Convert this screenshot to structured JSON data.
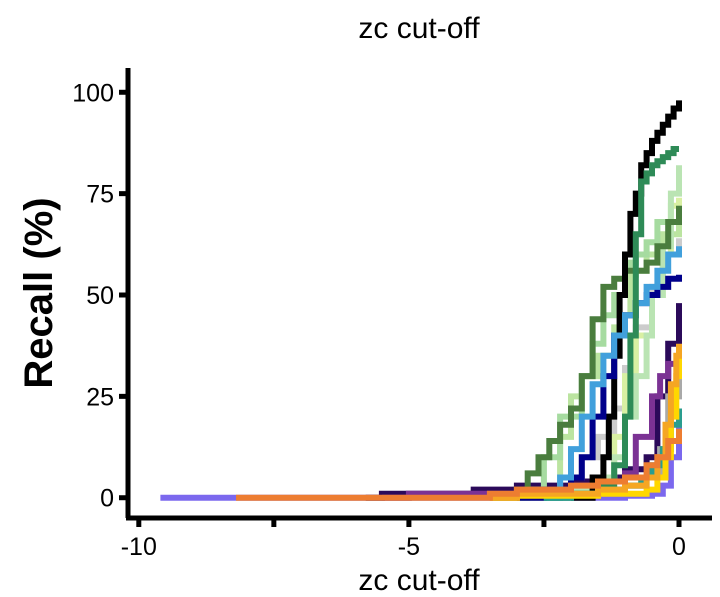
{
  "chart_data": {
    "type": "line",
    "title": "zc cut-off",
    "xlabel": "zc cut-off",
    "ylabel": "Recall (%)",
    "xlim": [
      -10.2,
      0.5
    ],
    "ylim": [
      -5,
      105
    ],
    "xticks": [
      -10,
      -5,
      0
    ],
    "xtick_labels": [
      "-10",
      "-5",
      "0"
    ],
    "yticks": [
      0,
      25,
      50,
      75,
      100
    ],
    "ytick_labels": [
      "0",
      "25",
      "50",
      "75",
      "100"
    ],
    "grid": false,
    "legend": "none",
    "series": [
      {
        "color": "#7b68ee",
        "x": [
          -9.6,
          -5.5,
          -3.5,
          -2.0,
          -1.0,
          -0.5,
          -0.3,
          -0.15,
          0
        ],
        "y": [
          0,
          0,
          0,
          0,
          0.5,
          1,
          3,
          10,
          18
        ]
      },
      {
        "color": "#2b0a5a",
        "x": [
          -5.8,
          -5.5,
          -4.5,
          -3.8,
          -3.0,
          -2.0,
          -1.5,
          -1.0,
          -0.6,
          -0.4,
          -0.2,
          0
        ],
        "y": [
          0,
          1,
          1,
          2,
          3,
          4,
          5,
          7,
          10,
          25,
          38,
          48
        ]
      },
      {
        "color": "#7b3294",
        "x": [
          -5.5,
          -5.0,
          -4.0,
          -3.0,
          -2.0,
          -1.5,
          -1.0,
          -0.8,
          -0.5,
          -0.35,
          -0.2,
          0
        ],
        "y": [
          0,
          1,
          1,
          2,
          3,
          4,
          6,
          15,
          25,
          30,
          33,
          35
        ]
      },
      {
        "color": "#a9a9a9",
        "x": [
          -3.5,
          -3.0,
          -2.0,
          -1.5,
          -1.0,
          -0.6,
          -0.35,
          -0.2,
          0
        ],
        "y": [
          0,
          1,
          2,
          2,
          3,
          5,
          12,
          25,
          30
        ]
      },
      {
        "color": "#cccccc",
        "x": [
          -3.0,
          -2.5,
          -2.0,
          -1.8,
          -1.5,
          -1.2,
          -1.0,
          -0.8,
          -0.5,
          -0.3,
          0
        ],
        "y": [
          0,
          2,
          5,
          10,
          15,
          22,
          32,
          42,
          52,
          60,
          64
        ]
      },
      {
        "color": "#d9f0a3",
        "x": [
          -3.5,
          -2.5,
          -2.0,
          -1.5,
          -1.2,
          -1.0,
          -0.8,
          -0.5,
          -0.3,
          -0.15,
          0
        ],
        "y": [
          0,
          1,
          2,
          5,
          15,
          30,
          40,
          50,
          60,
          72,
          74
        ]
      },
      {
        "color": "#bbe4a0",
        "x": [
          -2.5,
          -2.2,
          -2.0,
          -1.8,
          -1.5,
          -1.2,
          -1.0,
          -0.9,
          -0.8,
          -0.6,
          -0.3,
          0
        ],
        "y": [
          0,
          15,
          25,
          30,
          35,
          42,
          45,
          55,
          56,
          60,
          65,
          70
        ]
      },
      {
        "color": "#a6dba0",
        "x": [
          -3.0,
          -2.8,
          -2.5,
          -2.2,
          -1.8,
          -1.6,
          -1.4,
          -1.2,
          -1.0,
          -0.9,
          -0.8,
          -0.6,
          -0.4,
          0
        ],
        "y": [
          0,
          2,
          10,
          20,
          30,
          38,
          45,
          50,
          57,
          58,
          60,
          63,
          68,
          72
        ]
      },
      {
        "color": "#bae4b3",
        "x": [
          -2.5,
          -2.0,
          -1.5,
          -1.2,
          -1.0,
          -0.8,
          -0.6,
          -0.5,
          -0.3,
          -0.15,
          0
        ],
        "y": [
          0,
          2,
          5,
          10,
          20,
          30,
          40,
          50,
          62,
          75,
          82
        ]
      },
      {
        "color": "#4a7d3e",
        "x": [
          -3.5,
          -3.0,
          -2.8,
          -2.6,
          -2.4,
          -2.2,
          -2.0,
          -1.8,
          -1.6,
          -1.4,
          -1.2,
          -1.0,
          -0.8,
          -0.6,
          -0.4,
          -0.2,
          0
        ],
        "y": [
          0,
          2,
          6,
          10,
          14,
          18,
          22,
          30,
          44,
          52,
          54,
          56,
          56,
          58,
          62,
          68,
          72
        ]
      },
      {
        "color": "#000000",
        "x": [
          -2.0,
          -1.6,
          -1.4,
          -1.3,
          -1.2,
          -1.1,
          -1.0,
          -0.9,
          -0.8,
          -0.7,
          -0.6,
          -0.5,
          -0.4,
          -0.3,
          -0.2,
          -0.1,
          0
        ],
        "y": [
          0,
          5,
          10,
          20,
          35,
          50,
          60,
          70,
          75,
          82,
          85,
          88,
          90,
          92,
          94,
          96,
          98
        ]
      },
      {
        "color": "#00008b",
        "x": [
          -3.0,
          -2.5,
          -2.0,
          -1.8,
          -1.6,
          -1.4,
          -1.2,
          -1.0,
          -0.8,
          -0.6,
          -0.4,
          -0.2,
          0
        ],
        "y": [
          0,
          2,
          5,
          10,
          20,
          30,
          40,
          45,
          48,
          50,
          52,
          54,
          55
        ]
      },
      {
        "color": "#41a0dc",
        "x": [
          -2.5,
          -2.2,
          -2.0,
          -1.8,
          -1.6,
          -1.4,
          -1.2,
          -1.0,
          -0.8,
          -0.6,
          -0.4,
          -0.2,
          0
        ],
        "y": [
          0,
          5,
          12,
          20,
          28,
          35,
          40,
          45,
          48,
          52,
          56,
          60,
          62
        ]
      },
      {
        "color": "#2e8b57",
        "x": [
          -2.5,
          -2.0,
          -1.5,
          -1.2,
          -1.0,
          -0.9,
          -0.8,
          -0.7,
          -0.6,
          -0.5,
          -0.4,
          -0.3,
          -0.2,
          -0.1,
          0
        ],
        "y": [
          0,
          1,
          3,
          8,
          20,
          40,
          65,
          78,
          80,
          82,
          83,
          84,
          85,
          86,
          86
        ]
      },
      {
        "color": "#2a9d8f",
        "x": [
          -2.5,
          -2.0,
          -1.5,
          -1.0,
          -0.7,
          -0.5,
          -0.3,
          -0.15,
          0
        ],
        "y": [
          0,
          1,
          2,
          3,
          5,
          8,
          12,
          18,
          22
        ]
      },
      {
        "color": "#ffd700",
        "x": [
          -3.5,
          -3.0,
          -2.0,
          -1.5,
          -1.0,
          -0.6,
          -0.4,
          -0.25,
          -0.15,
          -0.05,
          0
        ],
        "y": [
          0,
          0.5,
          0.5,
          1,
          1,
          2,
          5,
          10,
          20,
          30,
          35
        ]
      },
      {
        "color": "#f5a623",
        "x": [
          -3.5,
          -3.0,
          -2.0,
          -1.5,
          -1.0,
          -0.6,
          -0.4,
          -0.25,
          -0.15,
          -0.05,
          0
        ],
        "y": [
          0,
          1,
          1,
          2,
          3,
          5,
          10,
          18,
          28,
          35,
          38
        ]
      },
      {
        "color": "#ed7d31",
        "x": [
          -8.2,
          -5.0,
          -4.0,
          -3.5,
          -3.0,
          -2.5,
          -2.0,
          -1.5,
          -1.0,
          -0.6,
          -0.4,
          -0.2,
          0
        ],
        "y": [
          0,
          0,
          0,
          1,
          2,
          2,
          3,
          4,
          5,
          8,
          10,
          14,
          17
        ]
      }
    ]
  }
}
